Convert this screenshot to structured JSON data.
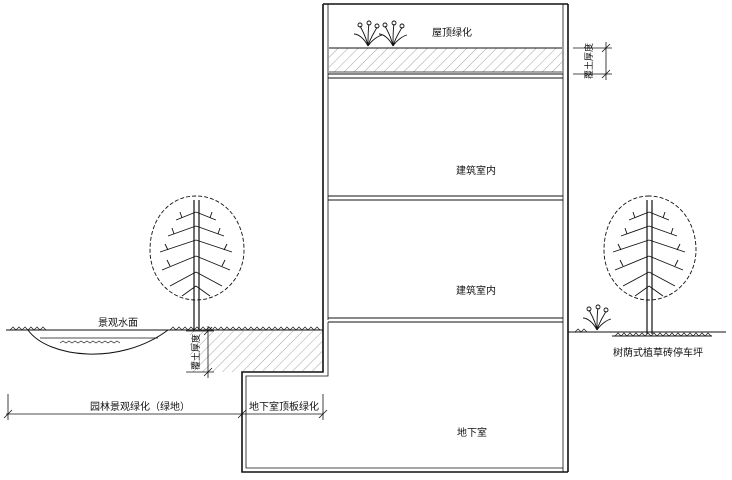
{
  "labels": {
    "roof_greening": "屋顶绿化",
    "soil_thickness_roof": "覆土厚度",
    "building_interior_upper": "建筑室内",
    "building_interior_lower": "建筑室内",
    "landscape_water": "景观水面",
    "soil_thickness_ground": "覆土厚度",
    "grass_paver_parking": "树荫式植草砖停车坪",
    "garden_greening": "园林景观绿化（绿地）",
    "basement_roof_greening": "地下室顶板绿化",
    "basement": "地下室"
  },
  "colors": {
    "line": "#111111",
    "hatch": "#8a8a8a",
    "background": "#ffffff"
  }
}
